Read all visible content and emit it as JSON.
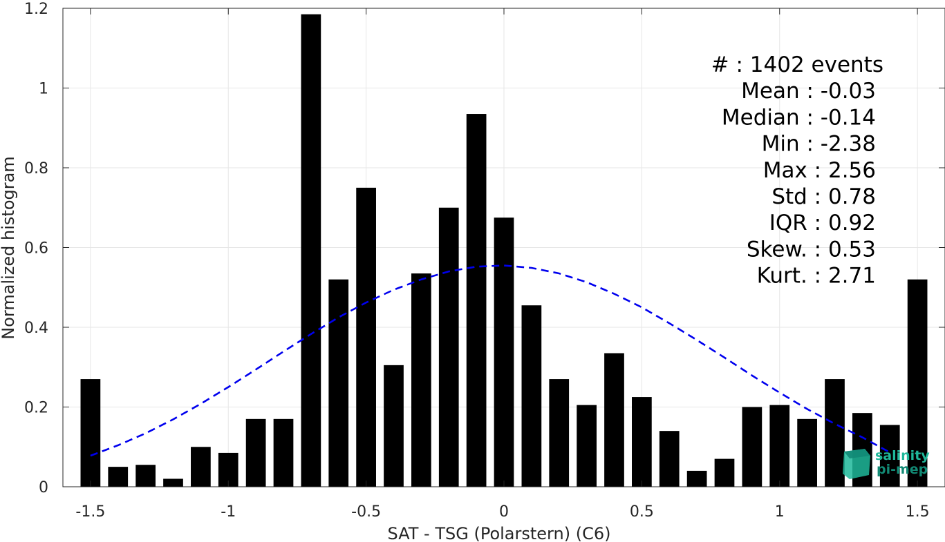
{
  "chart_data": {
    "type": "bar",
    "xlabel": "SAT - TSG (Polarstern) (C6)",
    "ylabel": "Normalized histogram",
    "xlim": [
      -1.6,
      1.6
    ],
    "ylim": [
      0,
      1.2
    ],
    "xticks": [
      "-1.5",
      "-1",
      "-0.5",
      "0",
      "0.5",
      "1",
      "1.5"
    ],
    "yticks": [
      "0",
      "0.2",
      "0.4",
      "0.6",
      "0.8",
      "1",
      "1.2"
    ],
    "grid": true,
    "bin_width": 0.1,
    "series": [
      {
        "x": [
          -1.5,
          -1.4,
          -1.3,
          -1.2,
          -1.1,
          -1.0,
          -0.9,
          -0.8,
          -0.7,
          -0.6,
          -0.5,
          -0.4,
          -0.3,
          -0.2,
          -0.1,
          0.0,
          0.1,
          0.2,
          0.3,
          0.4,
          0.5,
          0.6,
          0.7,
          0.8,
          0.9,
          1.0,
          1.1,
          1.2,
          1.3,
          1.4,
          1.5
        ],
        "values": [
          0.27,
          0.05,
          0.055,
          0.02,
          0.1,
          0.085,
          0.17,
          0.17,
          1.185,
          0.52,
          0.75,
          0.305,
          0.535,
          0.7,
          0.935,
          0.675,
          0.455,
          0.27,
          0.205,
          0.335,
          0.225,
          0.14,
          0.04,
          0.07,
          0.2,
          0.205,
          0.17,
          0.27,
          0.185,
          0.155,
          0.52
        ],
        "color": "#000000"
      },
      {
        "type": "line",
        "style": "dashed",
        "color": "#0000ee",
        "x": [
          -1.5,
          -1.4,
          -1.3,
          -1.2,
          -1.1,
          -1.0,
          -0.9,
          -0.8,
          -0.7,
          -0.6,
          -0.5,
          -0.4,
          -0.3,
          -0.2,
          -0.1,
          0.0,
          0.1,
          0.2,
          0.3,
          0.4,
          0.5,
          0.6,
          0.7,
          0.8,
          0.9,
          1.0,
          1.1,
          1.2,
          1.3,
          1.4
        ],
        "values": [
          0.078,
          0.104,
          0.134,
          0.169,
          0.208,
          0.25,
          0.294,
          0.339,
          0.383,
          0.425,
          0.462,
          0.494,
          0.52,
          0.54,
          0.552,
          0.555,
          0.549,
          0.535,
          0.513,
          0.484,
          0.45,
          0.41,
          0.368,
          0.324,
          0.279,
          0.236,
          0.195,
          0.158,
          0.124,
          0.086
        ]
      }
    ],
    "annotations": [
      "#  : 1402 events",
      "Mean : -0.03",
      "Median : -0.14",
      "Min : -2.38",
      "Max : 2.56",
      "Std : 0.78",
      "IQR : 0.92",
      "Skew. : 0.53",
      "Kurt. : 2.71"
    ]
  },
  "logo": {
    "line1": "salinity",
    "line2": "pi-mep"
  },
  "colors": {
    "bars": "#000000",
    "fit": "#0000ee",
    "grid": "#e6e6e6",
    "axis": "#262626",
    "logo": "#1fb89a"
  }
}
